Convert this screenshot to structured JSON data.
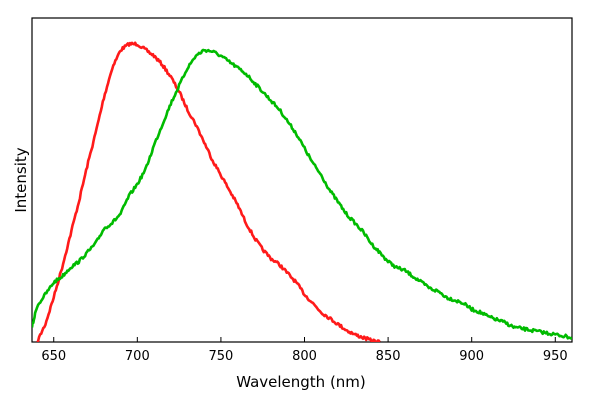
{
  "chart_data": {
    "type": "line",
    "title": "",
    "xlabel": "Wavelength (nm)",
    "ylabel": "Intensity",
    "xlim": [
      637,
      960
    ],
    "ylim": [
      0,
      1.0
    ],
    "xticks": [
      "650",
      "700",
      "750",
      "800",
      "850",
      "900",
      "950"
    ],
    "xtick_values": [
      650,
      700,
      750,
      800,
      850,
      900,
      950
    ],
    "grid": false,
    "legend": "none",
    "series": [
      {
        "color": "#ff1a1a",
        "x": [
          640,
          645,
          650,
          655,
          660,
          665,
          670,
          675,
          680,
          685,
          690,
          695,
          700,
          705,
          710,
          715,
          720,
          725,
          730,
          735,
          740,
          745,
          750,
          755,
          760,
          765,
          770,
          775,
          780,
          785,
          790,
          795,
          800,
          805,
          810,
          815,
          820,
          825,
          830,
          835,
          840,
          845
        ],
        "y": [
          0.0,
          0.06,
          0.15,
          0.25,
          0.36,
          0.47,
          0.59,
          0.7,
          0.82,
          0.92,
          0.98,
          1.0,
          1.0,
          0.98,
          0.96,
          0.93,
          0.89,
          0.84,
          0.78,
          0.73,
          0.67,
          0.61,
          0.56,
          0.51,
          0.46,
          0.4,
          0.35,
          0.31,
          0.28,
          0.26,
          0.23,
          0.2,
          0.16,
          0.13,
          0.1,
          0.08,
          0.06,
          0.04,
          0.025,
          0.015,
          0.005,
          0.0
        ]
      },
      {
        "color": "#00bb00",
        "x": [
          637,
          640,
          645,
          650,
          655,
          660,
          665,
          670,
          675,
          680,
          685,
          690,
          695,
          700,
          705,
          710,
          715,
          720,
          725,
          730,
          735,
          740,
          745,
          750,
          755,
          760,
          765,
          770,
          775,
          780,
          785,
          790,
          795,
          800,
          805,
          810,
          815,
          820,
          825,
          830,
          835,
          840,
          845,
          850,
          855,
          860,
          865,
          870,
          875,
          880,
          885,
          890,
          895,
          900,
          905,
          910,
          915,
          920,
          925,
          930,
          935,
          940,
          945,
          950,
          955,
          960
        ],
        "y": [
          0.05,
          0.12,
          0.16,
          0.2,
          0.22,
          0.25,
          0.27,
          0.3,
          0.33,
          0.38,
          0.4,
          0.43,
          0.49,
          0.53,
          0.58,
          0.66,
          0.73,
          0.8,
          0.86,
          0.92,
          0.96,
          0.98,
          0.975,
          0.96,
          0.94,
          0.92,
          0.9,
          0.87,
          0.84,
          0.81,
          0.78,
          0.74,
          0.7,
          0.65,
          0.6,
          0.56,
          0.51,
          0.47,
          0.43,
          0.4,
          0.37,
          0.33,
          0.3,
          0.27,
          0.25,
          0.24,
          0.22,
          0.2,
          0.18,
          0.17,
          0.15,
          0.14,
          0.13,
          0.11,
          0.1,
          0.085,
          0.075,
          0.065,
          0.05,
          0.045,
          0.04,
          0.035,
          0.03,
          0.025,
          0.02,
          0.015
        ]
      }
    ]
  }
}
